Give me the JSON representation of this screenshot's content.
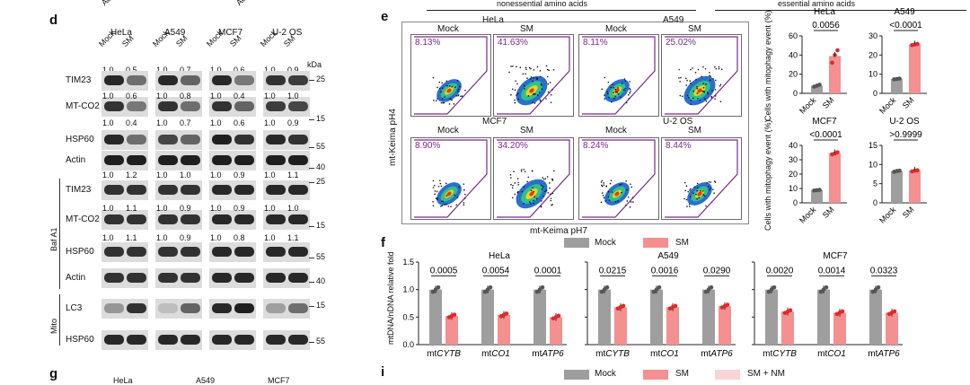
{
  "panel_d": {
    "label": "d",
    "top_cut_labels": [
      "Ad",
      "Ad"
    ],
    "cell_lines": [
      "HeLa",
      "A549",
      "MCF7",
      "U-2 OS"
    ],
    "lane_labels": [
      "Mock",
      "SM"
    ],
    "kda_label": "kDa",
    "header_values": [
      "1.0",
      "0.5",
      "1.0",
      "0.7",
      "1.0",
      "0.6",
      "1.0",
      "0.9"
    ],
    "rows": [
      {
        "name": "TIM23",
        "marker": "25",
        "values_below": [
          "1.0",
          "0.6",
          "1.0",
          "0.8",
          "1.0",
          "0.4",
          "1.0",
          "1.0"
        ]
      },
      {
        "name": "MT-CO2",
        "marker": "15",
        "values_below": [
          "1.0",
          "0.4",
          "1.0",
          "0.7",
          "1.0",
          "0.6",
          "1.0",
          "0.9"
        ]
      },
      {
        "name": "HSP60",
        "marker": "55",
        "values_below": []
      },
      {
        "name": "Actin",
        "marker": "40",
        "values_below": [
          "1.0",
          "1.2",
          "1.0",
          "1.0",
          "1.0",
          "0.9",
          "1.0",
          "1.1"
        ]
      }
    ],
    "bafa1_label": "Baf A1",
    "bafa1_rows": [
      {
        "name": "TIM23",
        "marker": "25",
        "values_below": [
          "1.0",
          "1.1",
          "1.0",
          "0.9",
          "1.0",
          "0.9",
          "1.0",
          "1.0"
        ]
      },
      {
        "name": "MT-CO2",
        "marker": "15",
        "values_below": [
          "1.0",
          "1.1",
          "1.0",
          "0.9",
          "1.0",
          "0.8",
          "1.0",
          "1.1"
        ]
      },
      {
        "name": "HSP60",
        "marker": "55",
        "values_below": []
      },
      {
        "name": "Actin",
        "marker": "40",
        "values_below": []
      }
    ],
    "mito_label": "Mito",
    "mito_rows": [
      {
        "name": "LC3",
        "marker": "15"
      },
      {
        "name": "HSP60",
        "marker": "55"
      }
    ]
  },
  "panel_e": {
    "label": "e",
    "header_left": "nonessential amino acids",
    "header_right": "essential amino acids",
    "y_axis": "mt-Keima pH4",
    "x_axis": "mt-Keima pH7",
    "groups": [
      {
        "cell": "HeLa",
        "plots": [
          {
            "cond": "Mock",
            "pct": "8.13%"
          },
          {
            "cond": "SM",
            "pct": "41.63%"
          }
        ]
      },
      {
        "cell": "A549",
        "plots": [
          {
            "cond": "Mock",
            "pct": "8.11%"
          },
          {
            "cond": "SM",
            "pct": "25.02%"
          }
        ]
      },
      {
        "cell": "MCF7",
        "plots": [
          {
            "cond": "Mock",
            "pct": "8.90%"
          },
          {
            "cond": "SM",
            "pct": "34.20%"
          }
        ]
      },
      {
        "cell": "U-2 OS",
        "plots": [
          {
            "cond": "Mock",
            "pct": "8.24%"
          },
          {
            "cond": "SM",
            "pct": "8.44%"
          }
        ]
      }
    ],
    "bar_ylabel": "Cells with mitophagy event (%)",
    "xcats": [
      "Mock",
      "SM"
    ]
  },
  "panel_f": {
    "label": "f",
    "legend": [
      {
        "name": "Mock",
        "color": "#9e9e9e"
      },
      {
        "name": "SM",
        "color": "#f4908f"
      }
    ],
    "ylabel": "mtDNA/nDNA relative fold",
    "genes": [
      {
        "prefix": "mt",
        "gene": "CYTB"
      },
      {
        "prefix": "mt",
        "gene": "CO1"
      },
      {
        "prefix": "mt",
        "gene": "ATP6"
      }
    ]
  },
  "panel_g": {
    "label": "g",
    "cut_labels": [
      "HeLa",
      "A549",
      "MCF7"
    ]
  },
  "panel_i": {
    "label": "i",
    "legend": [
      {
        "name": "Mock",
        "color": "#9e9e9e"
      },
      {
        "name": "SM",
        "color": "#f4908f"
      },
      {
        "name": "SM + NM",
        "color": "#f9d4d6"
      }
    ]
  },
  "chart_data": [
    {
      "type": "scatter",
      "title": "HeLa",
      "ylabel": "Cells with mitophagy event (%)",
      "ylim": [
        0,
        60
      ],
      "yticks": [
        "0",
        "20",
        "40",
        "60"
      ],
      "categories": [
        "Mock",
        "SM"
      ],
      "means": [
        8,
        39
      ],
      "points": [
        [
          7,
          8,
          9
        ],
        [
          32,
          40,
          45
        ]
      ],
      "p_value": "0.0056"
    },
    {
      "type": "scatter",
      "title": "A549",
      "ylabel": "Cells with mitophagy event (%)",
      "ylim": [
        0,
        30
      ],
      "yticks": [
        "0",
        "10",
        "20",
        "30"
      ],
      "categories": [
        "Mock",
        "SM"
      ],
      "means": [
        7.5,
        25.5
      ],
      "points": [
        [
          7.3,
          7.5,
          7.7
        ],
        [
          25.2,
          25.5,
          25.8
        ]
      ],
      "p_value": "<0.0001"
    },
    {
      "type": "scatter",
      "title": "MCF7",
      "ylabel": "Cells with mitophagy event (%)",
      "ylim": [
        0,
        40
      ],
      "yticks": [
        "0",
        "10",
        "20",
        "30",
        "40"
      ],
      "categories": [
        "Mock",
        "SM"
      ],
      "means": [
        8.8,
        34.5
      ],
      "points": [
        [
          8.6,
          8.8,
          9.0
        ],
        [
          33.8,
          34.4,
          35.2
        ]
      ],
      "p_value": "<0.0001"
    },
    {
      "type": "scatter",
      "title": "U-2 OS",
      "ylabel": "Cells with mitophagy event (%)",
      "ylim": [
        0,
        15
      ],
      "yticks": [
        "0",
        "5",
        "10",
        "15"
      ],
      "categories": [
        "Mock",
        "SM"
      ],
      "means": [
        8.3,
        8.4
      ],
      "points": [
        [
          8.1,
          8.3,
          8.4
        ],
        [
          8.2,
          8.4,
          8.5
        ]
      ],
      "p_value": ">0.9999"
    },
    {
      "type": "bar",
      "title": "HeLa",
      "ylabel": "mtDNA/nDNA relative fold",
      "ylim": [
        0,
        1.5
      ],
      "yticks": [
        "0.0",
        "0.5",
        "1.0",
        "1.5"
      ],
      "categories": [
        "CYTB",
        "CO1",
        "ATP6"
      ],
      "series": [
        {
          "name": "Mock",
          "values": [
            1.0,
            1.0,
            1.0
          ]
        },
        {
          "name": "SM",
          "values": [
            0.52,
            0.54,
            0.5
          ]
        }
      ],
      "p_values": [
        "0.0005",
        "0.0054",
        "0.0001"
      ]
    },
    {
      "type": "bar",
      "title": "A549",
      "ylabel": "mtDNA/nDNA relative fold",
      "ylim": [
        0,
        1.5
      ],
      "yticks": [
        "0.0",
        "0.5",
        "1.0",
        "1.5"
      ],
      "categories": [
        "CYTB",
        "CO1",
        "ATP6"
      ],
      "series": [
        {
          "name": "Mock",
          "values": [
            1.0,
            1.0,
            1.0
          ]
        },
        {
          "name": "SM",
          "values": [
            0.68,
            0.68,
            0.7
          ]
        }
      ],
      "p_values": [
        "0.0215",
        "0.0016",
        "0.0290"
      ]
    },
    {
      "type": "bar",
      "title": "MCF7",
      "ylabel": "mtDNA/nDNA relative fold",
      "ylim": [
        0,
        1.5
      ],
      "yticks": [
        "0.0",
        "0.5",
        "1.0",
        "1.5"
      ],
      "categories": [
        "CYTB",
        "CO1",
        "ATP6"
      ],
      "series": [
        {
          "name": "Mock",
          "values": [
            1.0,
            1.0,
            1.0
          ]
        },
        {
          "name": "SM",
          "values": [
            0.6,
            0.58,
            0.58
          ]
        }
      ],
      "p_values": [
        "0.0020",
        "0.0014",
        "0.0323"
      ]
    }
  ]
}
